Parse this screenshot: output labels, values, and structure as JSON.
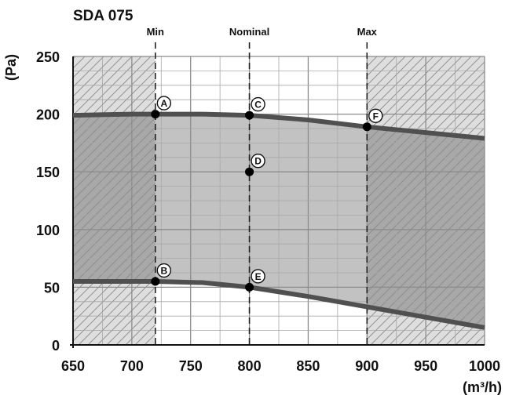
{
  "chart_data": {
    "type": "line",
    "title": "SDA 075",
    "xlabel": "(m³/h)",
    "ylabel": "(Pa)",
    "xlim": [
      650,
      1000
    ],
    "ylim": [
      0,
      250
    ],
    "xticks": [
      650,
      700,
      750,
      800,
      850,
      900,
      950,
      1000
    ],
    "yticks": [
      0,
      50,
      100,
      150,
      200,
      250
    ],
    "grid": true,
    "markers": [
      {
        "label": "Min",
        "x": 720
      },
      {
        "label": "Nominal",
        "x": 800
      },
      {
        "label": "Max",
        "x": 900
      }
    ],
    "series": [
      {
        "values": [
          [
            650,
            199
          ],
          [
            700,
            200
          ],
          [
            720,
            200
          ],
          [
            760,
            200
          ],
          [
            800,
            199
          ],
          [
            850,
            195
          ],
          [
            900,
            189
          ],
          [
            950,
            184
          ],
          [
            1000,
            179
          ]
        ]
      },
      {
        "values": [
          [
            650,
            55
          ],
          [
            700,
            55
          ],
          [
            720,
            55
          ],
          [
            760,
            54
          ],
          [
            800,
            50
          ],
          [
            850,
            42
          ],
          [
            900,
            33
          ],
          [
            950,
            24
          ],
          [
            1000,
            15
          ]
        ]
      }
    ],
    "points": [
      {
        "label": "A",
        "x": 720,
        "y": 200
      },
      {
        "label": "B",
        "x": 720,
        "y": 55
      },
      {
        "label": "C",
        "x": 800,
        "y": 199
      },
      {
        "label": "D",
        "x": 800,
        "y": 150
      },
      {
        "label": "E",
        "x": 800,
        "y": 50
      },
      {
        "label": "F",
        "x": 900,
        "y": 189
      }
    ]
  }
}
